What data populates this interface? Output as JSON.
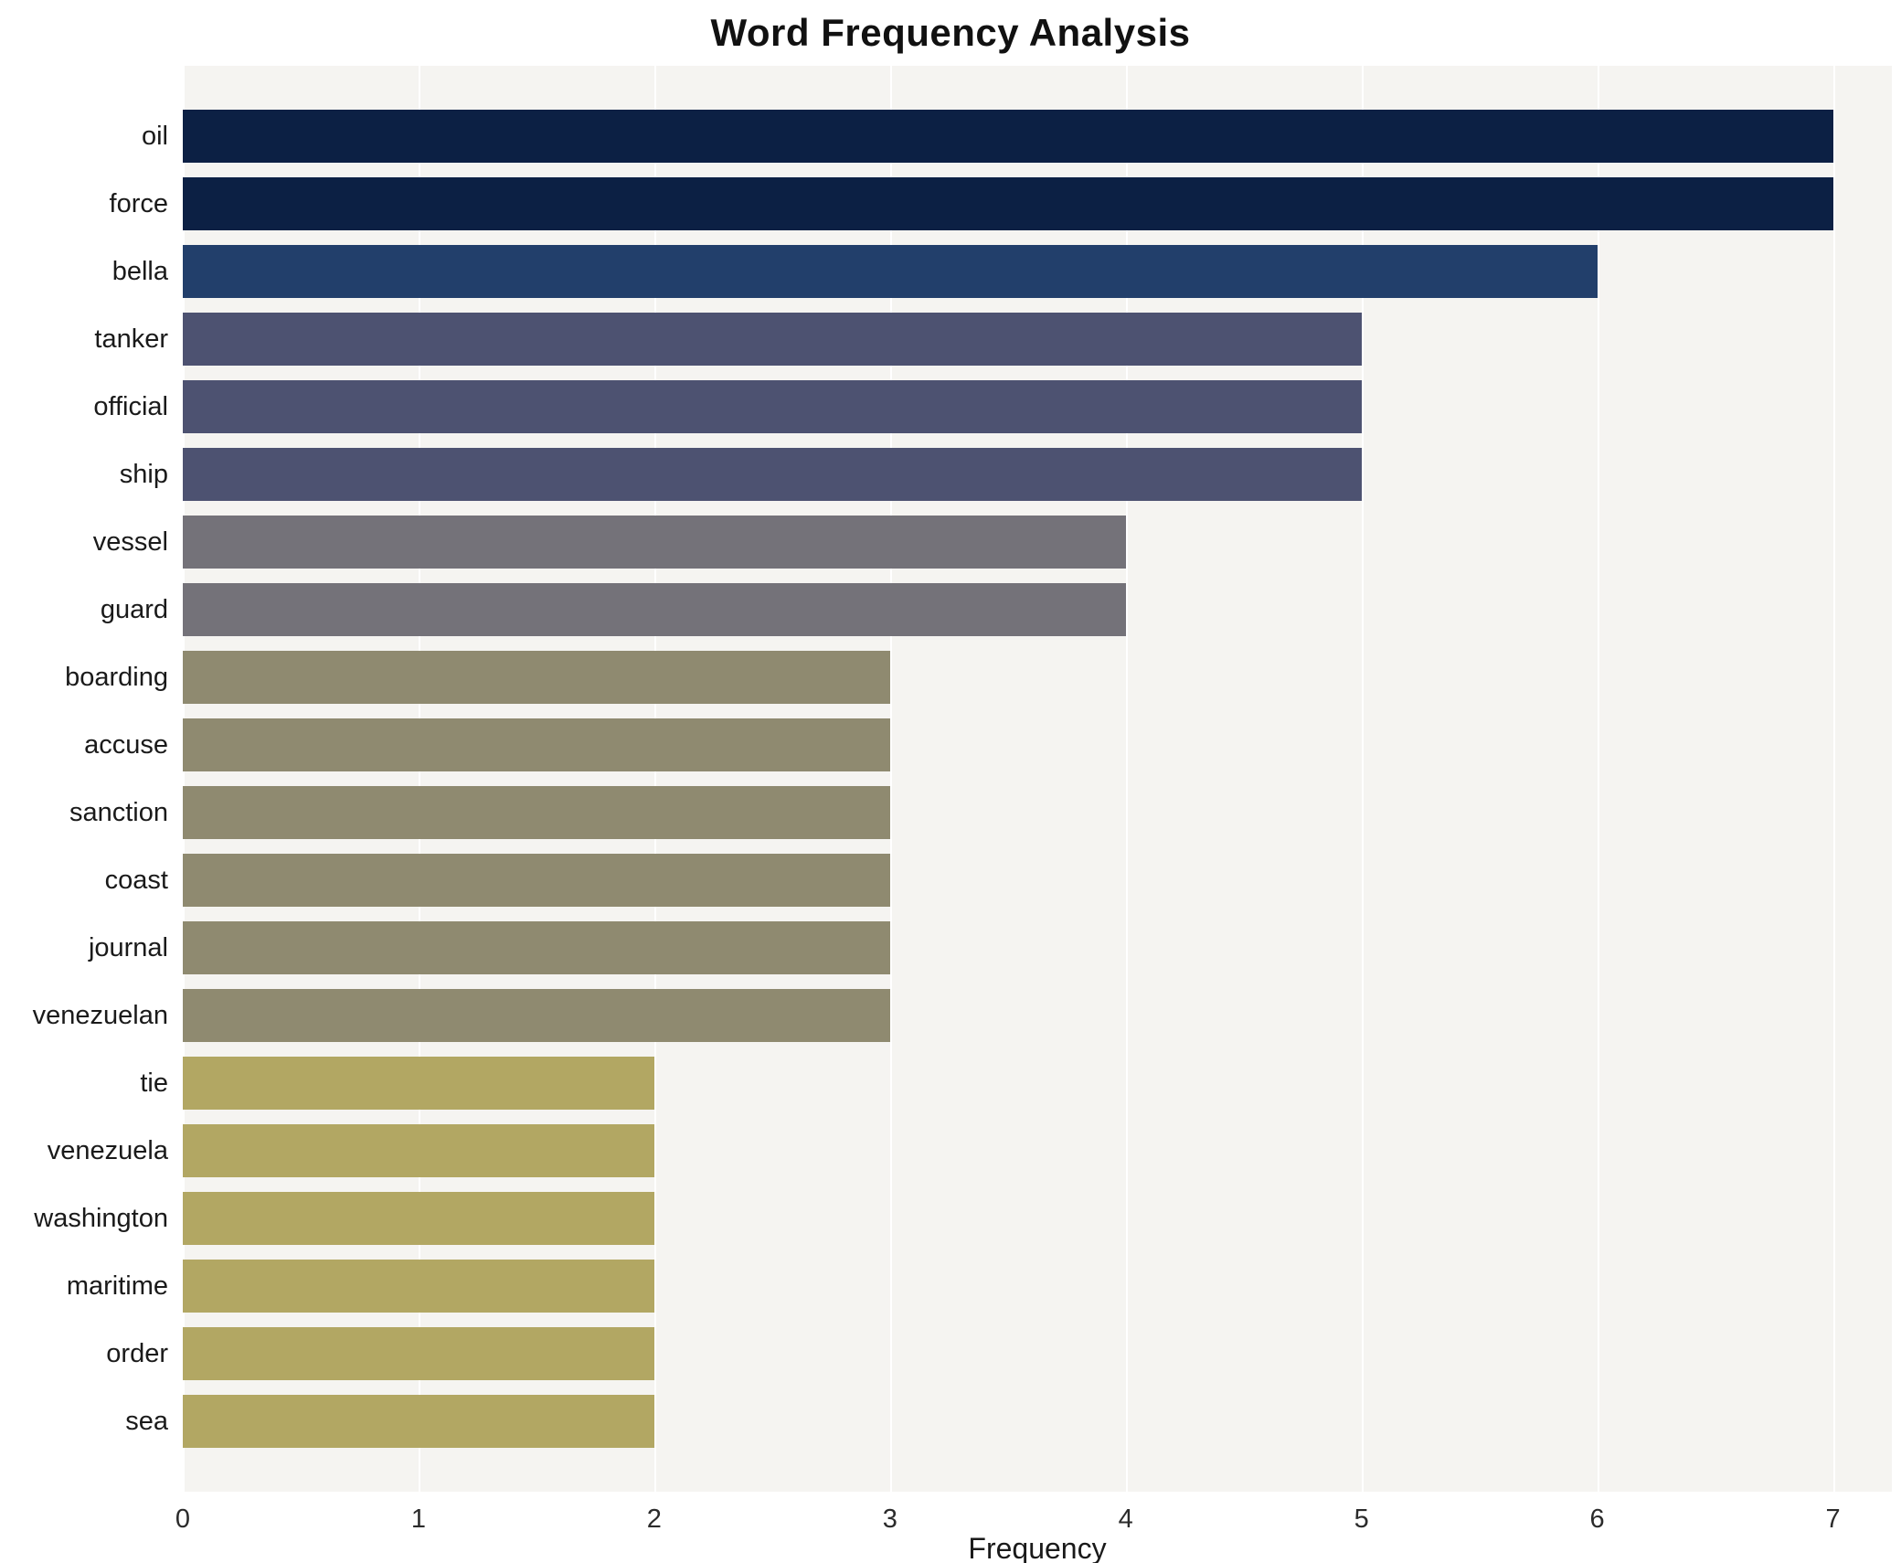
{
  "chart": {
    "title": "Word Frequency Analysis",
    "xlabel": "Frequency"
  },
  "chart_data": {
    "type": "bar",
    "orientation": "horizontal",
    "title": "Word Frequency Analysis",
    "xlabel": "Frequency",
    "ylabel": "",
    "categories": [
      "oil",
      "force",
      "bella",
      "tanker",
      "official",
      "ship",
      "vessel",
      "guard",
      "boarding",
      "accuse",
      "sanction",
      "coast",
      "journal",
      "venezuelan",
      "tie",
      "venezuela",
      "washington",
      "maritime",
      "order",
      "sea"
    ],
    "values": [
      7,
      7,
      6,
      5,
      5,
      5,
      4,
      4,
      3,
      3,
      3,
      3,
      3,
      3,
      2,
      2,
      2,
      2,
      2,
      2
    ],
    "bar_colors": [
      "#0c2044",
      "#0c2044",
      "#223f6b",
      "#4d5271",
      "#4d5271",
      "#4d5271",
      "#747279",
      "#747279",
      "#8f8a70",
      "#8f8a70",
      "#8f8a70",
      "#8f8a70",
      "#8f8a70",
      "#8f8a70",
      "#b2a763",
      "#b2a763",
      "#b2a763",
      "#b2a763",
      "#b2a763",
      "#b2a763"
    ],
    "xlim": [
      0,
      7.25
    ],
    "xticks": [
      0,
      1,
      2,
      3,
      4,
      5,
      6,
      7
    ],
    "grid": true,
    "legend": false,
    "plot_bg": "#f5f4f1",
    "grid_color": "#ffffff"
  }
}
